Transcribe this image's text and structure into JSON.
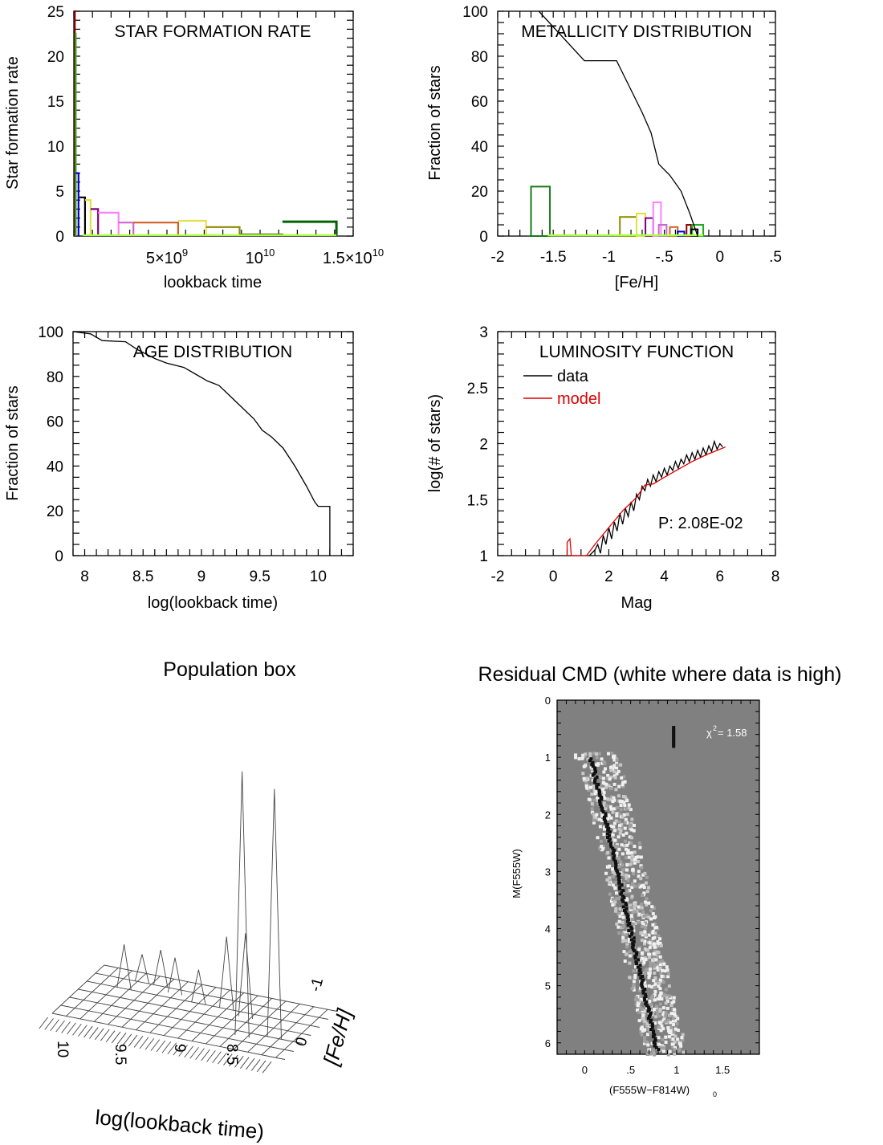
{
  "chart_data": [
    {
      "id": "sfr",
      "type": "line",
      "title": "STAR FORMATION RATE",
      "xlabel": "lookback time",
      "ylabel": "Star formation rate",
      "xlim": [
        0,
        15000000000.0
      ],
      "ylim": [
        0,
        25
      ],
      "x_ticklabels": [
        {
          "value": 5000000000.0,
          "mantissa": "5×10",
          "exponent": "9"
        },
        {
          "value": 10000000000.0,
          "mantissa": "10",
          "exponent": "10"
        },
        {
          "value": 15000000000.0,
          "mantissa": "1.5×10",
          "exponent": "10"
        }
      ],
      "y_ticks": [
        0,
        5,
        10,
        15,
        20,
        25
      ],
      "series": [
        {
          "color": "#8b0000",
          "points": [
            [
              0,
              25
            ],
            [
              50000000.0,
              25
            ],
            [
              50000000.0,
              0
            ]
          ]
        },
        {
          "color": "#22aa22",
          "points": [
            [
              50000000.0,
              22.5
            ],
            [
              100000000.0,
              22.5
            ],
            [
              100000000.0,
              0
            ]
          ]
        },
        {
          "color": "#0000cc",
          "points": [
            [
              100000000.0,
              7
            ],
            [
              250000000.0,
              7
            ],
            [
              250000000.0,
              0
            ]
          ]
        },
        {
          "color": "#000000",
          "points": [
            [
              300000000.0,
              4.3
            ],
            [
              600000000.0,
              4.3
            ],
            [
              600000000.0,
              0
            ]
          ]
        },
        {
          "color": "#e0e040",
          "points": [
            [
              600000000.0,
              4
            ],
            [
              900000000.0,
              4
            ],
            [
              900000000.0,
              0
            ]
          ]
        },
        {
          "color": "#800080",
          "points": [
            [
              900000000.0,
              3
            ],
            [
              1300000000.0,
              3
            ],
            [
              1300000000.0,
              0
            ]
          ]
        },
        {
          "color": "#ff80ff",
          "points": [
            [
              1300000000.0,
              2.6
            ],
            [
              2400000000.0,
              2.6
            ],
            [
              2400000000.0,
              0
            ]
          ]
        },
        {
          "color": "#cc66cc",
          "points": [
            [
              2400000000.0,
              1.5
            ],
            [
              3200000000.0,
              1.5
            ],
            [
              3200000000.0,
              0
            ]
          ]
        },
        {
          "color": "#d06020",
          "points": [
            [
              3200000000.0,
              1.5
            ],
            [
              5600000000.0,
              1.5
            ],
            [
              5600000000.0,
              0
            ]
          ]
        },
        {
          "color": "#e6e050",
          "points": [
            [
              5600000000.0,
              1.7
            ],
            [
              7100000000.0,
              1.7
            ],
            [
              7100000000.0,
              0
            ]
          ]
        },
        {
          "color": "#8b8b00",
          "points": [
            [
              7100000000.0,
              1
            ],
            [
              8900000000.0,
              1
            ],
            [
              8900000000.0,
              0
            ]
          ]
        },
        {
          "color": "#556b2f",
          "points": [
            [
              8900000000.0,
              0.2
            ],
            [
              11200000000.0,
              0.2
            ],
            [
              11200000000.0,
              0
            ]
          ]
        },
        {
          "color": "#006400",
          "points": [
            [
              11200000000.0,
              1.6
            ],
            [
              14100000000.0,
              1.6
            ],
            [
              14100000000.0,
              0
            ]
          ]
        },
        {
          "color": "#aaff44",
          "points": [
            [
              500000000.0,
              0.1
            ],
            [
              14100000000.0,
              0.1
            ]
          ]
        }
      ]
    },
    {
      "id": "metallicity",
      "type": "line",
      "title": "METALLICITY DISTRIBUTION",
      "xlabel": "[Fe/H]",
      "ylabel": "Fraction of stars",
      "xlim": [
        -2,
        0.5
      ],
      "ylim": [
        0,
        100
      ],
      "x_ticks": [
        -2,
        -1.5,
        -1,
        -0.5,
        0,
        0.5
      ],
      "x_ticklabels": [
        "-2",
        "-1.5",
        "-1",
        "-.5",
        "0",
        ".5"
      ],
      "y_ticks": [
        0,
        20,
        40,
        60,
        80,
        100
      ],
      "cumulative": [
        [
          -1.63,
          100
        ],
        [
          -1.22,
          78
        ],
        [
          -0.93,
          78
        ],
        [
          -0.8,
          65
        ],
        [
          -0.7,
          55
        ],
        [
          -0.62,
          46
        ],
        [
          -0.55,
          32
        ],
        [
          -0.45,
          27
        ],
        [
          -0.35,
          20
        ],
        [
          -0.27,
          10
        ],
        [
          -0.2,
          0
        ]
      ],
      "bars": [
        {
          "x0": -1.7,
          "x1": -1.53,
          "y": 22,
          "color": "#1a7a1a"
        },
        {
          "x0": -0.9,
          "x1": -0.75,
          "y": 8.5,
          "color": "#8b8b00"
        },
        {
          "x0": -0.75,
          "x1": -0.67,
          "y": 10,
          "color": "#e0e040"
        },
        {
          "x0": -0.67,
          "x1": -0.6,
          "y": 8,
          "color": "#800080"
        },
        {
          "x0": -0.6,
          "x1": -0.53,
          "y": 15,
          "color": "#ff80ff"
        },
        {
          "x0": -0.55,
          "x1": -0.48,
          "y": 5,
          "color": "#cc66cc"
        },
        {
          "x0": -0.45,
          "x1": -0.38,
          "y": 4,
          "color": "#d06020"
        },
        {
          "x0": -0.38,
          "x1": -0.32,
          "y": 2,
          "color": "#0000cc"
        },
        {
          "x0": -0.3,
          "x1": -0.26,
          "y": 5,
          "color": "#8b0000"
        },
        {
          "x0": -0.25,
          "x1": -0.15,
          "y": 5,
          "color": "#22aa22"
        },
        {
          "x0": -0.26,
          "x1": -0.2,
          "y": 3,
          "color": "#000000"
        }
      ],
      "baseline_line": {
        "x0": -1.55,
        "x1": -0.15,
        "color": "#aaff44"
      }
    },
    {
      "id": "age",
      "type": "line",
      "title": "AGE DISTRIBUTION",
      "xlabel": "log(lookback time)",
      "ylabel": "Fraction of stars",
      "xlim": [
        7.9,
        10.3
      ],
      "ylim": [
        0,
        100
      ],
      "x_ticks": [
        8,
        8.5,
        9,
        9.5,
        10
      ],
      "x_ticklabels": [
        "8",
        "8.5",
        "9",
        "9.5",
        "10"
      ],
      "y_ticks": [
        0,
        20,
        40,
        60,
        80,
        100
      ],
      "points": [
        [
          7.9,
          100
        ],
        [
          8.05,
          99
        ],
        [
          8.15,
          96
        ],
        [
          8.35,
          95.5
        ],
        [
          8.45,
          92
        ],
        [
          8.6,
          88
        ],
        [
          8.7,
          86
        ],
        [
          8.85,
          84
        ],
        [
          8.95,
          81
        ],
        [
          9.05,
          78
        ],
        [
          9.15,
          76
        ],
        [
          9.25,
          71
        ],
        [
          9.35,
          66
        ],
        [
          9.45,
          61
        ],
        [
          9.52,
          56
        ],
        [
          9.6,
          53
        ],
        [
          9.7,
          48
        ],
        [
          9.8,
          40
        ],
        [
          9.9,
          31
        ],
        [
          9.97,
          24
        ],
        [
          10.0,
          22
        ],
        [
          10.1,
          22
        ],
        [
          10.1,
          0
        ]
      ]
    },
    {
      "id": "lf",
      "type": "line",
      "title": "LUMINOSITY FUNCTION",
      "xlabel": "Mag",
      "ylabel": "log(# of stars)",
      "xlim": [
        -2,
        8
      ],
      "ylim": [
        1,
        3
      ],
      "x_ticks": [
        -2,
        0,
        2,
        4,
        6,
        8
      ],
      "x_ticklabels": [
        "-2",
        "0",
        "2",
        "4",
        "6",
        "8"
      ],
      "y_ticks": [
        1,
        1.5,
        2,
        2.5,
        3
      ],
      "y_ticklabels": [
        "1",
        "1.5",
        "2",
        "2.5",
        "3"
      ],
      "annotation": "P: 2.08E-02",
      "legend": {
        "location": "top-left",
        "entries": [
          {
            "label": "data",
            "color": "#000000"
          },
          {
            "label": "model",
            "color": "#dd0000"
          }
        ]
      },
      "series": [
        {
          "name": "data",
          "color": "#000000",
          "points": [
            [
              1.3,
              1.0
            ],
            [
              1.5,
              1.05
            ],
            [
              1.6,
              1.1
            ],
            [
              1.7,
              1.02
            ],
            [
              1.8,
              1.18
            ],
            [
              1.9,
              1.1
            ],
            [
              2.0,
              1.25
            ],
            [
              2.1,
              1.15
            ],
            [
              2.2,
              1.3
            ],
            [
              2.3,
              1.22
            ],
            [
              2.4,
              1.38
            ],
            [
              2.5,
              1.28
            ],
            [
              2.6,
              1.42
            ],
            [
              2.7,
              1.35
            ],
            [
              2.8,
              1.48
            ],
            [
              2.9,
              1.4
            ],
            [
              3.0,
              1.55
            ],
            [
              3.1,
              1.5
            ],
            [
              3.2,
              1.62
            ],
            [
              3.3,
              1.58
            ],
            [
              3.4,
              1.68
            ],
            [
              3.5,
              1.62
            ],
            [
              3.6,
              1.72
            ],
            [
              3.7,
              1.66
            ],
            [
              3.8,
              1.75
            ],
            [
              3.9,
              1.7
            ],
            [
              4.0,
              1.78
            ],
            [
              4.1,
              1.72
            ],
            [
              4.2,
              1.8
            ],
            [
              4.3,
              1.76
            ],
            [
              4.4,
              1.84
            ],
            [
              4.5,
              1.78
            ],
            [
              4.6,
              1.86
            ],
            [
              4.7,
              1.82
            ],
            [
              4.8,
              1.9
            ],
            [
              4.9,
              1.84
            ],
            [
              5.0,
              1.92
            ],
            [
              5.1,
              1.86
            ],
            [
              5.2,
              1.94
            ],
            [
              5.3,
              1.88
            ],
            [
              5.4,
              1.96
            ],
            [
              5.5,
              1.9
            ],
            [
              5.6,
              1.98
            ],
            [
              5.7,
              1.93
            ],
            [
              5.8,
              2.02
            ],
            [
              5.9,
              1.95
            ],
            [
              6.0,
              2.0
            ],
            [
              6.1,
              1.97
            ]
          ]
        },
        {
          "name": "model",
          "color": "#dd0000",
          "points": [
            [
              0.5,
              1.0
            ],
            [
              0.5,
              1.12
            ],
            [
              0.6,
              1.15
            ],
            [
              0.65,
              1.0
            ],
            [
              1.2,
              1.0
            ],
            [
              1.5,
              1.1
            ],
            [
              2.0,
              1.25
            ],
            [
              2.5,
              1.4
            ],
            [
              3.0,
              1.52
            ],
            [
              3.3,
              1.63
            ],
            [
              3.6,
              1.64
            ],
            [
              4.0,
              1.7
            ],
            [
              4.5,
              1.77
            ],
            [
              5.0,
              1.84
            ],
            [
              5.5,
              1.9
            ],
            [
              6.0,
              1.95
            ],
            [
              6.2,
              1.97
            ]
          ]
        }
      ]
    },
    {
      "id": "popbox",
      "type": "area",
      "title": "Population box",
      "xlabel": "log(lookback time)",
      "ylabel": "[Fe/H]",
      "x_ticklabels": [
        "10",
        "9.5",
        "9",
        "8.5"
      ],
      "y_ticklabels": [
        "-1",
        "0"
      ]
    },
    {
      "id": "cmd",
      "type": "heatmap",
      "title": "Residual CMD (white where data is high)",
      "xlabel_main": "(F555W−F814W)",
      "xlabel_sub": "0",
      "ylabel": "M(F555W)",
      "xlim": [
        -0.3,
        1.9
      ],
      "ylim": [
        6.2,
        0
      ],
      "x_ticks": [
        0,
        0.5,
        1,
        1.5
      ],
      "x_ticklabels": [
        "0",
        ".5",
        "1",
        "1.5"
      ],
      "y_ticks": [
        0,
        1,
        2,
        3,
        4,
        5,
        6
      ],
      "y_ticklabels": [
        "0",
        "1",
        "2",
        "3",
        "4",
        "5",
        "6"
      ],
      "annotation": {
        "symbol": "χ",
        "power": "2",
        "text": "=  1.58"
      }
    }
  ]
}
